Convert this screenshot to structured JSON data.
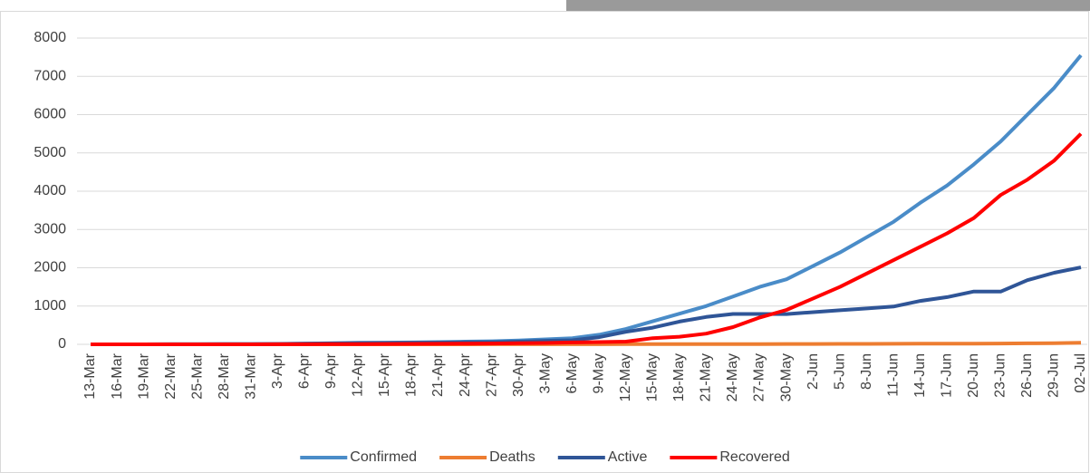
{
  "chart_data": {
    "type": "line",
    "categories": [
      "13-Mar",
      "16-Mar",
      "19-Mar",
      "22-Mar",
      "25-Mar",
      "28-Mar",
      "31-Mar",
      "3-Apr",
      "6-Apr",
      "9-Apr",
      "12-Apr",
      "15-Apr",
      "18-Apr",
      "21-Apr",
      "24-Apr",
      "27-Apr",
      "30-Apr",
      "3-May",
      "6-May",
      "9-May",
      "12-May",
      "15-May",
      "18-May",
      "21-May",
      "24-May",
      "27-May",
      "30-May",
      "2-Jun",
      "5-Jun",
      "8-Jun",
      "11-Jun",
      "14-Jun",
      "17-Jun",
      "20-Jun",
      "23-Jun",
      "26-Jun",
      "29-Jun",
      "02-Jul"
    ],
    "series": [
      {
        "name": "Confirmed",
        "color": "#4a8cc8",
        "values": [
          0,
          0,
          1,
          2,
          3,
          5,
          8,
          12,
          20,
          30,
          40,
          45,
          50,
          60,
          70,
          80,
          100,
          130,
          160,
          250,
          400,
          600,
          800,
          1000,
          1250,
          1500,
          1700,
          2050,
          2400,
          2800,
          3200,
          3700,
          4150,
          4700,
          5300,
          6000,
          6700,
          7550
        ]
      },
      {
        "name": "Deaths",
        "color": "#ed7d31",
        "values": [
          0,
          0,
          0,
          0,
          0,
          0,
          0,
          0,
          1,
          1,
          1,
          1,
          1,
          1,
          1,
          2,
          2,
          2,
          3,
          3,
          4,
          4,
          5,
          6,
          7,
          8,
          9,
          10,
          11,
          12,
          14,
          16,
          18,
          20,
          22,
          25,
          30,
          40
        ]
      },
      {
        "name": "Active",
        "color": "#2f5597",
        "values": [
          0,
          0,
          1,
          2,
          3,
          5,
          7,
          10,
          16,
          24,
          31,
          34,
          37,
          44,
          51,
          56,
          70,
          93,
          107,
          187,
          326,
          436,
          595,
          714,
          793,
          792,
          791,
          840,
          889,
          938,
          986,
          1134,
          1232,
          1380,
          1378,
          1675,
          1870,
          2010
        ]
      },
      {
        "name": "Recovered",
        "color": "#ff0000",
        "values": [
          0,
          0,
          0,
          0,
          0,
          0,
          1,
          2,
          3,
          5,
          8,
          10,
          12,
          15,
          18,
          22,
          28,
          35,
          50,
          60,
          70,
          160,
          200,
          280,
          450,
          700,
          900,
          1200,
          1500,
          1850,
          2200,
          2550,
          2900,
          3300,
          3900,
          4300,
          4800,
          5500
        ]
      }
    ],
    "ylim": [
      0,
      8000
    ],
    "yticks": [
      0,
      1000,
      2000,
      3000,
      4000,
      5000,
      6000,
      7000,
      8000
    ],
    "grid": true,
    "legend": "bottom"
  }
}
